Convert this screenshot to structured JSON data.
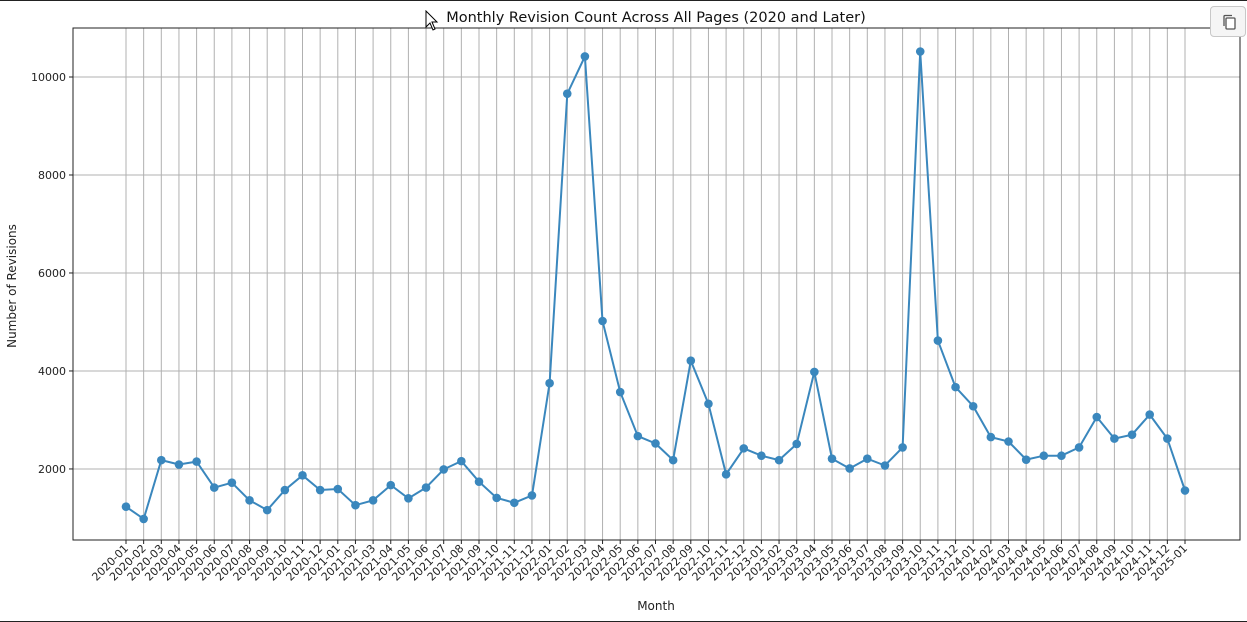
{
  "toolbar": {
    "copy_icon": "copy-icon"
  },
  "cursor_icon": "arrow-cursor-icon",
  "chart_data": {
    "type": "line",
    "title": "Monthly Revision Count Across All Pages (2020 and Later)",
    "xlabel": "Month",
    "ylabel": "Number of Revisions",
    "ylim": [
      550,
      11000
    ],
    "yticks": [
      2000,
      4000,
      6000,
      8000,
      10000
    ],
    "grid": true,
    "color": "#3a87bd",
    "categories": [
      "2020-01",
      "2020-02",
      "2020-03",
      "2020-04",
      "2020-05",
      "2020-06",
      "2020-07",
      "2020-08",
      "2020-09",
      "2020-10",
      "2020-11",
      "2020-12",
      "2021-01",
      "2021-02",
      "2021-03",
      "2021-04",
      "2021-05",
      "2021-06",
      "2021-07",
      "2021-08",
      "2021-09",
      "2021-10",
      "2021-11",
      "2021-12",
      "2022-01",
      "2022-02",
      "2022-03",
      "2022-04",
      "2022-05",
      "2022-06",
      "2022-07",
      "2022-08",
      "2022-09",
      "2022-10",
      "2022-11",
      "2022-12",
      "2023-01",
      "2023-02",
      "2023-03",
      "2023-04",
      "2023-05",
      "2023-06",
      "2023-07",
      "2023-08",
      "2023-09",
      "2023-10",
      "2023-11",
      "2023-12",
      "2024-01",
      "2024-02",
      "2024-03",
      "2024-04",
      "2024-05",
      "2024-06",
      "2024-07",
      "2024-08",
      "2024-09",
      "2024-10",
      "2024-11",
      "2024-12",
      "2025-01"
    ],
    "values": [
      1230,
      980,
      2180,
      2090,
      2150,
      1620,
      1720,
      1360,
      1160,
      1570,
      1870,
      1570,
      1590,
      1260,
      1360,
      1670,
      1400,
      1620,
      1990,
      2160,
      1740,
      1410,
      1310,
      1460,
      3750,
      9660,
      10420,
      5020,
      3570,
      2670,
      2520,
      2180,
      4210,
      3330,
      1890,
      2420,
      2270,
      2180,
      2510,
      3980,
      2210,
      2010,
      2210,
      2070,
      2440,
      10520,
      4620,
      3670,
      3280,
      2650,
      2560,
      2190,
      2270,
      2270,
      2440,
      3060,
      2620,
      2700,
      3110,
      2620,
      1560
    ]
  }
}
